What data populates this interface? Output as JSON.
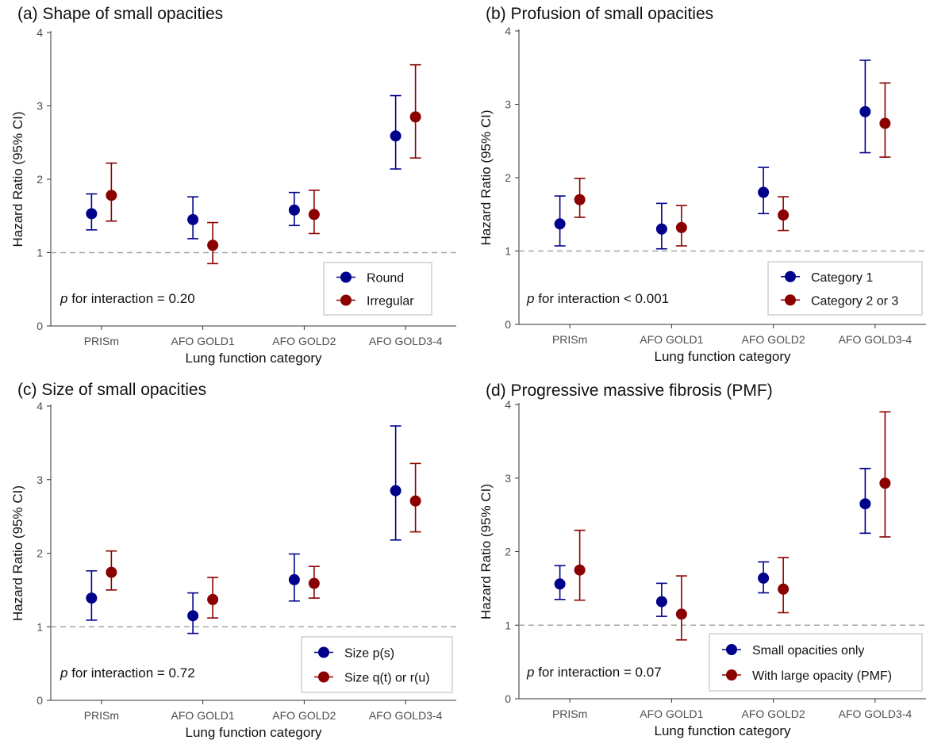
{
  "chart_data": [
    {
      "type": "scatter",
      "title": "(a) Shape of small opacities",
      "xlabel": "Lung function category",
      "ylabel": "Hazard Ratio (95% CI)",
      "categories": [
        "PRISm",
        "AFO GOLD1",
        "AFO GOLD2",
        "AFO GOLD3-4"
      ],
      "ylim": [
        0,
        4
      ],
      "yticks": [
        "0",
        "1",
        "2",
        "3",
        "4"
      ],
      "reference_line": 1,
      "grid": false,
      "legend_position": "bottom-right",
      "p_prefix": "p",
      "p_text": " for interaction = 0.20",
      "series": [
        {
          "name": "Round",
          "color": "#00008B",
          "values": [
            1.53,
            1.45,
            1.58,
            2.59
          ],
          "lower": [
            1.31,
            1.19,
            1.37,
            2.14
          ],
          "upper": [
            1.8,
            1.76,
            1.82,
            3.14
          ]
        },
        {
          "name": "Irregular",
          "color": "#8B0000",
          "values": [
            1.78,
            1.1,
            1.52,
            2.85
          ],
          "lower": [
            1.43,
            0.85,
            1.26,
            2.29
          ],
          "upper": [
            2.22,
            1.41,
            1.85,
            3.56
          ]
        }
      ]
    },
    {
      "type": "scatter",
      "title": "(b) Profusion of small opacities",
      "xlabel": "Lung function category",
      "ylabel": "Hazard Ratio (95% CI)",
      "categories": [
        "PRISm",
        "AFO GOLD1",
        "AFO GOLD2",
        "AFO GOLD3-4"
      ],
      "ylim": [
        0,
        4
      ],
      "yticks": [
        "0",
        "1",
        "2",
        "3",
        "4"
      ],
      "reference_line": 1,
      "grid": false,
      "legend_position": "bottom-right",
      "p_prefix": "p",
      "p_text": " for interaction < 0.001",
      "series": [
        {
          "name": "Category 1",
          "color": "#00008B",
          "values": [
            1.37,
            1.3,
            1.8,
            2.9
          ],
          "lower": [
            1.07,
            1.03,
            1.51,
            2.34
          ],
          "upper": [
            1.75,
            1.65,
            2.14,
            3.6
          ]
        },
        {
          "name": "Category 2 or 3",
          "color": "#8B0000",
          "values": [
            1.7,
            1.32,
            1.49,
            2.74
          ],
          "lower": [
            1.46,
            1.07,
            1.28,
            2.28
          ],
          "upper": [
            1.99,
            1.62,
            1.74,
            3.29
          ]
        }
      ]
    },
    {
      "type": "scatter",
      "title": "(c) Size of small opacities",
      "xlabel": "Lung function category",
      "ylabel": "Hazard Ratio (95% CI)",
      "categories": [
        "PRISm",
        "AFO GOLD1",
        "AFO GOLD2",
        "AFO GOLD3-4"
      ],
      "ylim": [
        0,
        4
      ],
      "yticks": [
        "0",
        "1",
        "2",
        "3",
        "4"
      ],
      "reference_line": 1,
      "grid": false,
      "legend_position": "bottom-right",
      "p_prefix": "p",
      "p_text": " for interaction = 0.72",
      "series": [
        {
          "name": "Size p(s)",
          "color": "#00008B",
          "values": [
            1.39,
            1.15,
            1.64,
            2.85
          ],
          "lower": [
            1.09,
            0.91,
            1.35,
            2.18
          ],
          "upper": [
            1.76,
            1.46,
            1.99,
            3.73
          ]
        },
        {
          "name": "Size q(t) or r(u)",
          "color": "#8B0000",
          "values": [
            1.74,
            1.37,
            1.59,
            2.71
          ],
          "lower": [
            1.5,
            1.12,
            1.39,
            2.29
          ],
          "upper": [
            2.03,
            1.67,
            1.82,
            3.22
          ]
        }
      ]
    },
    {
      "type": "scatter",
      "title": "(d) Progressive massive fibrosis (PMF)",
      "xlabel": "Lung function category",
      "ylabel": "Hazard Ratio (95% CI)",
      "categories": [
        "PRISm",
        "AFO GOLD1",
        "AFO GOLD2",
        "AFO GOLD3-4"
      ],
      "ylim": [
        0,
        4
      ],
      "yticks": [
        "0",
        "1",
        "2",
        "3",
        "4"
      ],
      "reference_line": 1,
      "grid": false,
      "legend_position": "bottom-right",
      "p_prefix": "p",
      "p_text": " for interaction = 0.07",
      "series": [
        {
          "name": "Small opacities only",
          "color": "#00008B",
          "values": [
            1.56,
            1.32,
            1.64,
            2.65
          ],
          "lower": [
            1.35,
            1.12,
            1.44,
            2.25
          ],
          "upper": [
            1.81,
            1.57,
            1.86,
            3.13
          ]
        },
        {
          "name": "With large opacity (PMF)",
          "color": "#8B0000",
          "values": [
            1.75,
            1.15,
            1.49,
            2.93
          ],
          "lower": [
            1.34,
            0.8,
            1.17,
            2.2
          ],
          "upper": [
            2.29,
            1.67,
            1.92,
            3.9
          ]
        }
      ]
    }
  ]
}
